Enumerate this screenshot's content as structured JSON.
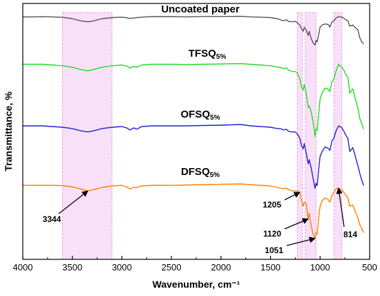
{
  "chart_data": {
    "type": "line",
    "xlabel": "Wavenumber, cm⁻¹",
    "ylabel": "Transmittance, %",
    "xlim": [
      4000,
      500
    ],
    "x_ticks": [
      "4000",
      "3500",
      "3000",
      "2500",
      "2000",
      "1500",
      "1000",
      "500"
    ],
    "grid": false,
    "series": [
      {
        "name": "Uncoated paper",
        "name_main": "Uncoated paper",
        "name_sub": "",
        "color": "#555555",
        "points": [
          [
            4000,
            0.7
          ],
          [
            3900,
            0.5
          ],
          [
            3800,
            0.3
          ],
          [
            3700,
            0.5
          ],
          [
            3600,
            1.5
          ],
          [
            3500,
            4
          ],
          [
            3420,
            8
          ],
          [
            3344,
            10
          ],
          [
            3280,
            8
          ],
          [
            3200,
            4
          ],
          [
            3100,
            2
          ],
          [
            3000,
            1
          ],
          [
            2950,
            2.2
          ],
          [
            2920,
            3.5
          ],
          [
            2880,
            2.5
          ],
          [
            2850,
            2
          ],
          [
            2800,
            1
          ],
          [
            2700,
            0
          ],
          [
            2500,
            0
          ],
          [
            2350,
            0.5
          ],
          [
            2200,
            -0.2
          ],
          [
            2000,
            -0.2
          ],
          [
            1800,
            -0.5
          ],
          [
            1700,
            0.5
          ],
          [
            1600,
            1
          ],
          [
            1500,
            2
          ],
          [
            1430,
            4
          ],
          [
            1400,
            6
          ],
          [
            1370,
            8
          ],
          [
            1340,
            6
          ],
          [
            1320,
            9
          ],
          [
            1280,
            10
          ],
          [
            1250,
            9
          ],
          [
            1230,
            12
          ],
          [
            1205,
            16
          ],
          [
            1190,
            22
          ],
          [
            1170,
            28
          ],
          [
            1160,
            20
          ],
          [
            1140,
            26
          ],
          [
            1120,
            36
          ],
          [
            1110,
            28
          ],
          [
            1090,
            42
          ],
          [
            1070,
            50
          ],
          [
            1051,
            54
          ],
          [
            1040,
            45
          ],
          [
            1030,
            48
          ],
          [
            1010,
            30
          ],
          [
            1000,
            20
          ],
          [
            980,
            16
          ],
          [
            950,
            14
          ],
          [
            920,
            15
          ],
          [
            900,
            20
          ],
          [
            880,
            10
          ],
          [
            860,
            8
          ],
          [
            840,
            3
          ],
          [
            814,
            0
          ],
          [
            800,
            0.5
          ],
          [
            780,
            1
          ],
          [
            760,
            3
          ],
          [
            740,
            6
          ],
          [
            720,
            8
          ],
          [
            700,
            18
          ],
          [
            670,
            16
          ],
          [
            650,
            20
          ],
          [
            620,
            25
          ],
          [
            600,
            40
          ],
          [
            580,
            48
          ],
          [
            560,
            52
          ]
        ]
      },
      {
        "name": "TFSQ5%",
        "name_main": "TFSQ",
        "name_sub": "5%",
        "color": "#22dd22",
        "points": [
          [
            4000,
            0
          ],
          [
            3800,
            0
          ],
          [
            3700,
            1
          ],
          [
            3600,
            2
          ],
          [
            3500,
            4
          ],
          [
            3420,
            7
          ],
          [
            3344,
            9
          ],
          [
            3280,
            7
          ],
          [
            3200,
            4
          ],
          [
            3100,
            2
          ],
          [
            3000,
            1
          ],
          [
            2950,
            2.5
          ],
          [
            2920,
            5
          ],
          [
            2880,
            3
          ],
          [
            2850,
            4
          ],
          [
            2800,
            1
          ],
          [
            2700,
            0
          ],
          [
            2500,
            0
          ],
          [
            2350,
            0.5
          ],
          [
            2200,
            0
          ],
          [
            2000,
            -0.5
          ],
          [
            1800,
            -1
          ],
          [
            1700,
            0
          ],
          [
            1600,
            1
          ],
          [
            1500,
            2
          ],
          [
            1430,
            4
          ],
          [
            1400,
            4
          ],
          [
            1370,
            6
          ],
          [
            1340,
            5
          ],
          [
            1320,
            8
          ],
          [
            1280,
            10
          ],
          [
            1250,
            10
          ],
          [
            1230,
            12
          ],
          [
            1205,
            20
          ],
          [
            1190,
            30
          ],
          [
            1170,
            36
          ],
          [
            1160,
            28
          ],
          [
            1140,
            40
          ],
          [
            1120,
            60
          ],
          [
            1110,
            58
          ],
          [
            1090,
            66
          ],
          [
            1070,
            80
          ],
          [
            1051,
            100
          ],
          [
            1040,
            90
          ],
          [
            1030,
            92
          ],
          [
            1010,
            62
          ],
          [
            1000,
            48
          ],
          [
            980,
            40
          ],
          [
            950,
            33
          ],
          [
            920,
            34
          ],
          [
            900,
            38
          ],
          [
            880,
            24
          ],
          [
            860,
            20
          ],
          [
            840,
            10
          ],
          [
            814,
            0
          ],
          [
            800,
            2
          ],
          [
            780,
            4
          ],
          [
            760,
            8
          ],
          [
            740,
            14
          ],
          [
            720,
            18
          ],
          [
            700,
            40
          ],
          [
            670,
            34
          ],
          [
            650,
            45
          ],
          [
            620,
            60
          ],
          [
            600,
            75
          ],
          [
            580,
            82
          ],
          [
            560,
            90
          ]
        ]
      },
      {
        "name": "OFSQ5%",
        "name_main": "OFSQ",
        "name_sub": "5%",
        "color": "#2222cc",
        "points": [
          [
            4000,
            0
          ],
          [
            3800,
            0
          ],
          [
            3700,
            1
          ],
          [
            3600,
            2
          ],
          [
            3500,
            4
          ],
          [
            3420,
            7
          ],
          [
            3344,
            9
          ],
          [
            3280,
            7
          ],
          [
            3200,
            4
          ],
          [
            3100,
            2
          ],
          [
            3000,
            1
          ],
          [
            2950,
            3
          ],
          [
            2920,
            6
          ],
          [
            2880,
            3
          ],
          [
            2850,
            5
          ],
          [
            2800,
            1
          ],
          [
            2700,
            0
          ],
          [
            2500,
            0
          ],
          [
            2350,
            0
          ],
          [
            2200,
            -0.5
          ],
          [
            2000,
            -1
          ],
          [
            1800,
            -2
          ],
          [
            1700,
            0
          ],
          [
            1600,
            1
          ],
          [
            1500,
            2
          ],
          [
            1430,
            4
          ],
          [
            1400,
            4
          ],
          [
            1370,
            6
          ],
          [
            1340,
            5
          ],
          [
            1320,
            8
          ],
          [
            1280,
            9
          ],
          [
            1250,
            9
          ],
          [
            1230,
            12
          ],
          [
            1205,
            18
          ],
          [
            1190,
            28
          ],
          [
            1170,
            34
          ],
          [
            1160,
            26
          ],
          [
            1140,
            40
          ],
          [
            1120,
            56
          ],
          [
            1110,
            50
          ],
          [
            1090,
            62
          ],
          [
            1070,
            78
          ],
          [
            1051,
            92
          ],
          [
            1040,
            85
          ],
          [
            1030,
            88
          ],
          [
            1010,
            58
          ],
          [
            1000,
            45
          ],
          [
            980,
            38
          ],
          [
            950,
            31
          ],
          [
            920,
            33
          ],
          [
            900,
            36
          ],
          [
            880,
            22
          ],
          [
            860,
            18
          ],
          [
            840,
            8
          ],
          [
            814,
            0
          ],
          [
            800,
            1
          ],
          [
            780,
            3
          ],
          [
            760,
            8
          ],
          [
            740,
            14
          ],
          [
            720,
            18
          ],
          [
            700,
            38
          ],
          [
            670,
            32
          ],
          [
            650,
            42
          ],
          [
            620,
            58
          ],
          [
            600,
            70
          ],
          [
            580,
            80
          ],
          [
            560,
            88
          ]
        ]
      },
      {
        "name": "DFSQ5%",
        "name_main": "DFSQ",
        "name_sub": "5%",
        "color": "#ff8000",
        "points": [
          [
            4000,
            0
          ],
          [
            3800,
            0
          ],
          [
            3700,
            0
          ],
          [
            3600,
            0.5
          ],
          [
            3500,
            2
          ],
          [
            3420,
            5
          ],
          [
            3344,
            8
          ],
          [
            3280,
            6
          ],
          [
            3200,
            3
          ],
          [
            3100,
            1
          ],
          [
            3000,
            0
          ],
          [
            2950,
            2.5
          ],
          [
            2920,
            5
          ],
          [
            2880,
            3
          ],
          [
            2850,
            3
          ],
          [
            2800,
            1
          ],
          [
            2700,
            0
          ],
          [
            2500,
            0
          ],
          [
            2350,
            -0.5
          ],
          [
            2200,
            -1
          ],
          [
            2000,
            -1.5
          ],
          [
            1800,
            -2
          ],
          [
            1700,
            -1
          ],
          [
            1600,
            0
          ],
          [
            1500,
            1
          ],
          [
            1430,
            3
          ],
          [
            1400,
            4
          ],
          [
            1370,
            5
          ],
          [
            1340,
            4
          ],
          [
            1320,
            6
          ],
          [
            1280,
            8
          ],
          [
            1250,
            8
          ],
          [
            1230,
            8
          ],
          [
            1205,
            10
          ],
          [
            1190,
            20
          ],
          [
            1170,
            30
          ],
          [
            1160,
            24
          ],
          [
            1140,
            26
          ],
          [
            1120,
            48
          ],
          [
            1110,
            40
          ],
          [
            1090,
            58
          ],
          [
            1070,
            70
          ],
          [
            1051,
            76
          ],
          [
            1040,
            68
          ],
          [
            1030,
            70
          ],
          [
            1010,
            40
          ],
          [
            1000,
            30
          ],
          [
            980,
            22
          ],
          [
            950,
            18
          ],
          [
            920,
            20
          ],
          [
            900,
            24
          ],
          [
            880,
            14
          ],
          [
            860,
            10
          ],
          [
            840,
            5
          ],
          [
            814,
            4
          ],
          [
            800,
            5
          ],
          [
            780,
            7
          ],
          [
            760,
            10
          ],
          [
            740,
            14
          ],
          [
            720,
            18
          ],
          [
            700,
            30
          ],
          [
            670,
            28
          ],
          [
            650,
            36
          ],
          [
            620,
            46
          ],
          [
            600,
            56
          ],
          [
            580,
            62
          ],
          [
            560,
            68
          ]
        ]
      }
    ],
    "highlight_bands": [
      [
        3600,
        3100
      ],
      [
        1230,
        1180
      ],
      [
        1150,
        1040
      ],
      [
        860,
        780
      ]
    ],
    "annotations": [
      {
        "label": "3344",
        "x": 3344,
        "series_index": 3
      },
      {
        "label": "1205",
        "x": 1205,
        "series_index": 3
      },
      {
        "label": "1120",
        "x": 1120,
        "series_index": 3
      },
      {
        "label": "1051",
        "x": 1051,
        "series_index": 3
      },
      {
        "label": "814",
        "x": 814,
        "series_index": 3
      }
    ]
  }
}
